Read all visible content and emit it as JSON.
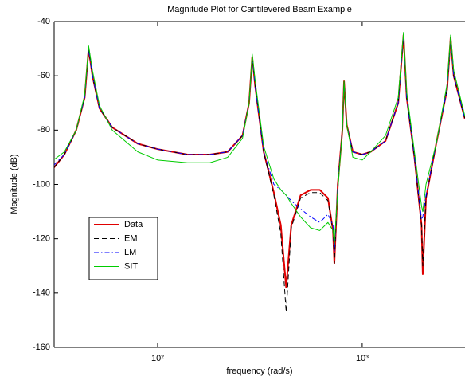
{
  "chart_data": {
    "type": "line",
    "title": "Magnitude Plot for Cantilevered Beam Example",
    "xlabel": "frequency (rad/s)",
    "ylabel": "Magnitude (dB)",
    "xscale": "log",
    "xlim": [
      31.2,
      3180
    ],
    "xticks": [
      {
        "value": 100,
        "label": "10²"
      },
      {
        "value": 1000,
        "label": "10³"
      }
    ],
    "ylim": [
      -160,
      -40
    ],
    "yticks": [
      -160,
      -140,
      -120,
      -100,
      -80,
      -60,
      -40
    ],
    "grid": false,
    "legend_position": "west",
    "x": [
      31,
      35,
      40,
      44,
      46,
      48,
      52,
      60,
      80,
      100,
      140,
      180,
      220,
      260,
      280,
      290,
      300,
      330,
      370,
      400,
      425,
      450,
      500,
      560,
      620,
      680,
      720,
      731,
      760,
      800,
      815,
      840,
      900,
      1000,
      1100,
      1300,
      1500,
      1592,
      1650,
      1800,
      1950,
      1977,
      2050,
      2300,
      2600,
      2705,
      2800,
      3180
    ],
    "series": [
      {
        "name": "Data",
        "color": "#e00000",
        "dash": "solid",
        "width": 2,
        "values": [
          -94,
          -89,
          -80,
          -68,
          -50,
          -60,
          -72,
          -79,
          -85,
          -87,
          -89,
          -89,
          -88,
          -82,
          -70,
          -53,
          -64,
          -88,
          -103,
          -115,
          -138,
          -115,
          -104,
          -102,
          -102,
          -105,
          -117,
          -129,
          -100,
          -80,
          -62,
          -78,
          -88,
          -89,
          -88,
          -84,
          -70,
          -45,
          -68,
          -90,
          -115,
          -133,
          -105,
          -85,
          -65,
          -46,
          -60,
          -76
        ]
      },
      {
        "name": "EM",
        "color": "#000000",
        "dash": "dashed",
        "width": 1,
        "values": [
          -94,
          -89,
          -80,
          -68,
          -50,
          -60,
          -72,
          -79,
          -85,
          -87,
          -89,
          -89,
          -88,
          -82,
          -70,
          -53,
          -64,
          -88,
          -104,
          -118,
          -147,
          -116,
          -105,
          -103,
          -103,
          -106,
          -117,
          -129,
          -100,
          -80,
          -62,
          -78,
          -88,
          -89,
          -88,
          -84,
          -70,
          -45,
          -68,
          -90,
          -115,
          -130,
          -105,
          -85,
          -65,
          -46,
          -60,
          -76
        ]
      },
      {
        "name": "LM",
        "color": "#0000ff",
        "dash": "dashdot",
        "width": 1,
        "values": [
          -93,
          -89,
          -80,
          -68,
          -50,
          -60,
          -72,
          -79,
          -85,
          -87,
          -89,
          -89,
          -88,
          -82,
          -70,
          -53,
          -64,
          -88,
          -100,
          -102,
          -104,
          -106,
          -109,
          -112,
          -114,
          -111,
          -115,
          -125,
          -100,
          -80,
          -62,
          -78,
          -88,
          -89,
          -88,
          -84,
          -70,
          -45,
          -68,
          -90,
          -113,
          -112,
          -104,
          -85,
          -65,
          -46,
          -60,
          -76
        ]
      },
      {
        "name": "SIT",
        "color": "#00cc00",
        "dash": "solid",
        "width": 1,
        "values": [
          -91,
          -88,
          -80,
          -67,
          -49,
          -58,
          -71,
          -80,
          -88,
          -91,
          -92,
          -92,
          -90,
          -83,
          -70,
          -52,
          -62,
          -86,
          -98,
          -102,
          -104,
          -107,
          -112,
          -116,
          -117,
          -114,
          -117,
          -122,
          -102,
          -80,
          -62,
          -78,
          -90,
          -91,
          -88,
          -82,
          -68,
          -44,
          -66,
          -88,
          -108,
          -110,
          -100,
          -85,
          -63,
          -45,
          -58,
          -75
        ]
      }
    ]
  }
}
